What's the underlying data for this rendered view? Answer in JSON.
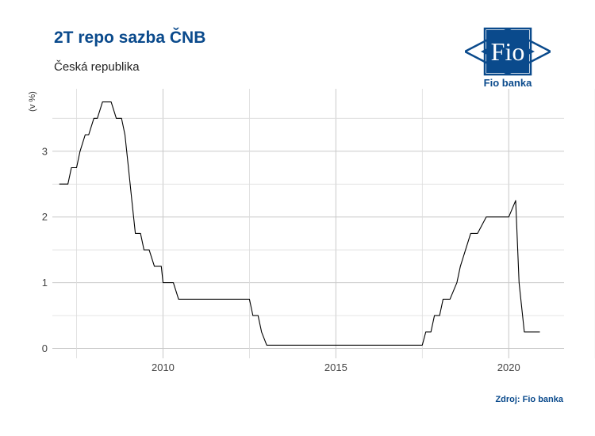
{
  "title": "2T repo sazba ČNB",
  "subtitle": "Česká republika",
  "logo": {
    "mark_text": "Fio",
    "name": "Fio banka",
    "color": "#0a4a8c"
  },
  "source": "Zdroj: Fio banka",
  "chart_data": {
    "type": "line",
    "title": "2T repo sazba ČNB",
    "subtitle": "Česká republika",
    "xlabel": "",
    "ylabel": "(v %)",
    "x_ticks": [
      2010,
      2015,
      2020
    ],
    "y_ticks": [
      0,
      1,
      2,
      3
    ],
    "xlim": [
      2006.8,
      2021.6
    ],
    "ylim": [
      -0.15,
      3.95
    ],
    "grid": true,
    "line_color": "#000000",
    "series": [
      {
        "x": [
          2007.0,
          2007.25,
          2007.35,
          2007.5,
          2007.6,
          2007.75,
          2007.85,
          2008.0,
          2008.1,
          2008.25,
          2008.5,
          2008.65,
          2008.8,
          2008.9,
          2009.0,
          2009.1,
          2009.2,
          2009.35,
          2009.45,
          2009.6,
          2009.75,
          2009.95,
          2010.0,
          2010.3,
          2010.45,
          2012.5,
          2012.6,
          2012.75,
          2012.85,
          2013.0,
          2017.5,
          2017.6,
          2017.75,
          2017.85,
          2018.0,
          2018.1,
          2018.3,
          2018.5,
          2018.6,
          2018.75,
          2018.9,
          2019.1,
          2019.35,
          2019.45,
          2020.0,
          2020.2,
          2020.3,
          2020.4,
          2020.45,
          2020.9
        ],
        "y": [
          2.5,
          2.5,
          2.75,
          2.75,
          3.0,
          3.25,
          3.25,
          3.5,
          3.5,
          3.75,
          3.75,
          3.5,
          3.5,
          3.25,
          2.75,
          2.25,
          1.75,
          1.75,
          1.5,
          1.5,
          1.25,
          1.25,
          1.0,
          1.0,
          0.75,
          0.75,
          0.5,
          0.5,
          0.25,
          0.05,
          0.05,
          0.25,
          0.25,
          0.5,
          0.5,
          0.75,
          0.75,
          1.0,
          1.25,
          1.5,
          1.75,
          1.75,
          2.0,
          2.0,
          2.0,
          2.25,
          1.0,
          0.5,
          0.25,
          0.25
        ]
      }
    ]
  }
}
